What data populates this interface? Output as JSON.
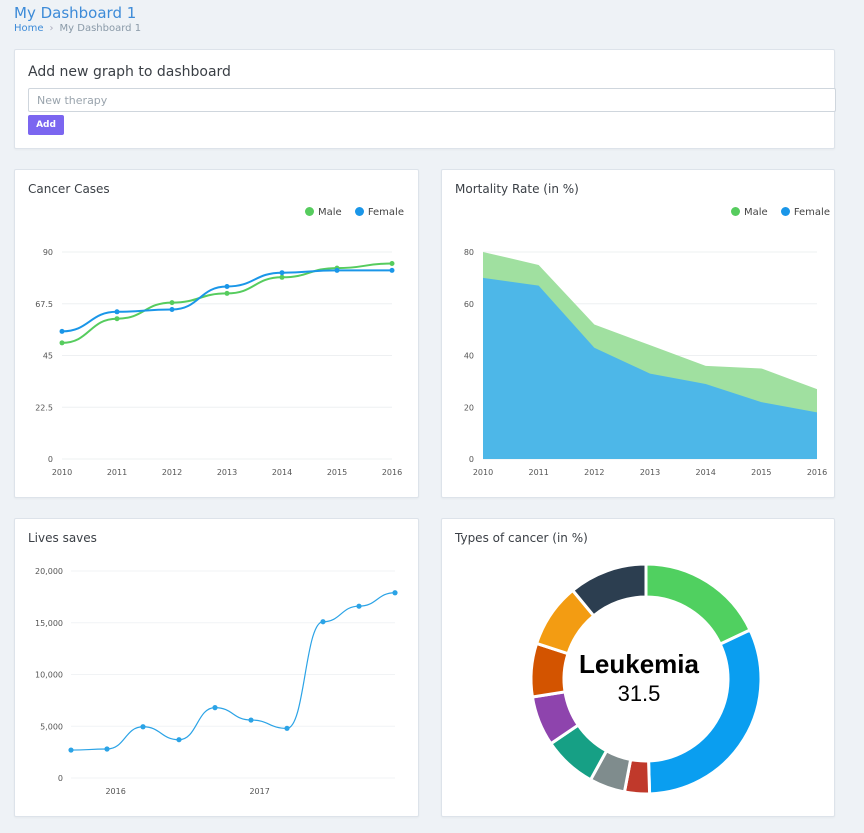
{
  "page": {
    "title": "My Dashboard 1",
    "breadcrumb": {
      "home": "Home",
      "current": "My Dashboard 1"
    }
  },
  "add_graph": {
    "heading": "Add new graph to dashboard",
    "input_placeholder": "New therapy",
    "input_value": "",
    "button_label": "Add"
  },
  "colors": {
    "male": "#56cc5e",
    "female": "#1a96e8",
    "male_area": "#a0e0a0",
    "female_area": "#4db7e8",
    "lives_line": "#2ba3e6",
    "accent": "#7b66f0"
  },
  "chart_data": [
    {
      "id": "cancer-cases",
      "type": "line",
      "title": "Cancer Cases",
      "x": [
        "2010",
        "2011",
        "2012",
        "2013",
        "2014",
        "2015",
        "2016"
      ],
      "ylim": [
        0,
        90
      ],
      "yticks": [
        "0",
        "22.5",
        "45",
        "67.5",
        "90"
      ],
      "legend": "top-right",
      "series": [
        {
          "name": "Male",
          "values": [
            50.5,
            61,
            68,
            72,
            79,
            83,
            85
          ]
        },
        {
          "name": "Female",
          "values": [
            55.5,
            64,
            65,
            75,
            81,
            82,
            82
          ]
        }
      ]
    },
    {
      "id": "mortality-rate",
      "type": "area",
      "title": "Mortality Rate (in %)",
      "x": [
        "2010",
        "2011",
        "2012",
        "2013",
        "2014",
        "2015",
        "2016"
      ],
      "ylim": [
        0,
        80
      ],
      "yticks": [
        "0",
        "20",
        "40",
        "60",
        "80"
      ],
      "legend": "top-right",
      "series": [
        {
          "name": "Male",
          "values": [
            80,
            75,
            52,
            44,
            36,
            35,
            27
          ]
        },
        {
          "name": "Female",
          "values": [
            70,
            67,
            43,
            33,
            29,
            22,
            18
          ]
        }
      ]
    },
    {
      "id": "lives-saves",
      "type": "line",
      "title": "Lives saves",
      "x": [
        2015.75,
        2016,
        2016.25,
        2016.5,
        2016.75,
        2017,
        2017.25,
        2017.5,
        2017.75,
        2018
      ],
      "xticks": [
        "2016",
        "2017"
      ],
      "ylim": [
        0,
        20000
      ],
      "yticks": [
        "0",
        "5,000",
        "10,000",
        "15,000",
        "20,000"
      ],
      "series": [
        {
          "name": "",
          "values": [
            2700,
            2800,
            4950,
            3700,
            6800,
            5600,
            4800,
            15100,
            16600,
            17900
          ]
        }
      ]
    },
    {
      "id": "types-of-cancer",
      "type": "pie",
      "title": "Types of cancer (in %)",
      "center_label": "Leukemia",
      "center_value": "31.5",
      "slices": [
        {
          "value": 18.0,
          "color": "#50d060"
        },
        {
          "value": 31.5,
          "color": "#0a9ef0"
        },
        {
          "value": 3.5,
          "color": "#c0392b"
        },
        {
          "value": 5.0,
          "color": "#7f8c8d"
        },
        {
          "value": 7.5,
          "color": "#16a085"
        },
        {
          "value": 7.0,
          "color": "#8e44ad"
        },
        {
          "value": 7.5,
          "color": "#d35400"
        },
        {
          "value": 9.0,
          "color": "#f39c12"
        },
        {
          "value": 11.0,
          "color": "#2c3e50"
        }
      ]
    }
  ]
}
